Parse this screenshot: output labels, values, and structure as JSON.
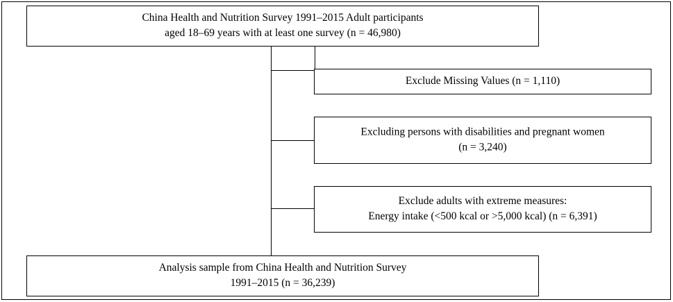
{
  "nodes": [
    {
      "lines": [
        "China Health and Nutrition Survey 1991–2015 Adult participants",
        "aged 18–69 years with at least one survey (n = 46,980)"
      ]
    },
    {
      "lines": [
        "Exclude Missing Values (n = 1,110)"
      ]
    },
    {
      "lines": [
        "Excluding persons with disabilities and pregnant women",
        "(n = 3,240)"
      ]
    },
    {
      "lines": [
        "Exclude adults with extreme measures:",
        "Energy intake (<500 kcal or >5,000 kcal) (n = 6,391)"
      ]
    },
    {
      "lines": [
        "Analysis sample from China Health and Nutrition Survey",
        "1991–2015 (n = 36,239)"
      ]
    }
  ]
}
